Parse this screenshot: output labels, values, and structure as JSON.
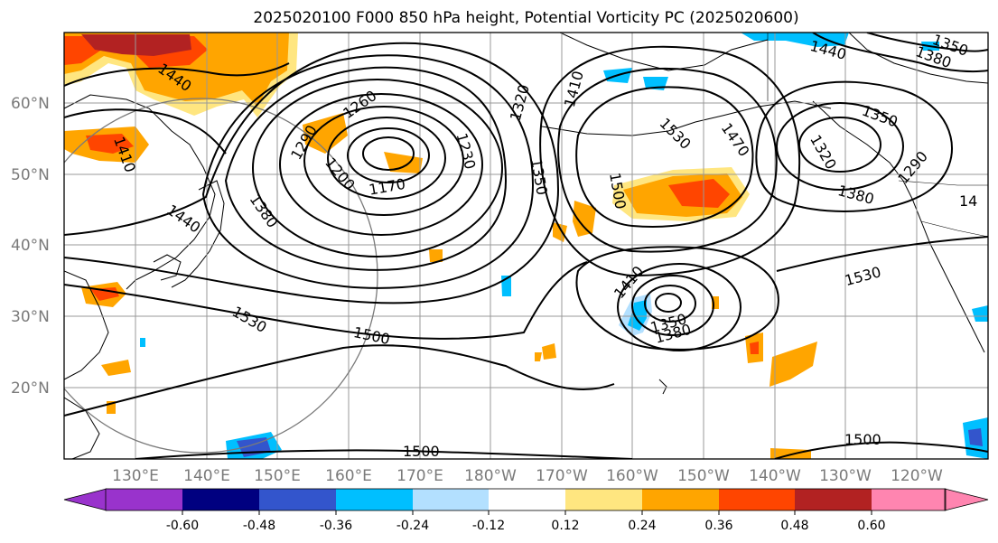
{
  "title": "2025020100 F000 850 hPa height, Potential Vorticity PC (2025020600)",
  "lat_labels": [
    "60°N",
    "50°N",
    "40°N",
    "30°N",
    "20°N"
  ],
  "lon_labels": [
    "130°E",
    "140°E",
    "150°E",
    "160°E",
    "170°E",
    "180°W",
    "170°W",
    "160°W",
    "150°W",
    "140°W",
    "130°W",
    "120°W"
  ],
  "contour_labels": [
    "1440",
    "1410",
    "1290",
    "1260",
    "1200",
    "1170",
    "1230",
    "1320",
    "1350",
    "1410",
    "1380",
    "1440",
    "1530",
    "1500",
    "1470",
    "1530",
    "1410",
    "1350",
    "1380",
    "1500",
    "1500",
    "1530",
    "1440",
    "1380",
    "1350",
    "1320",
    "1290",
    "1380",
    "1350",
    "14",
    "1500"
  ],
  "colorbar": {
    "ticks": [
      "-0.60",
      "-0.48",
      "-0.36",
      "-0.24",
      "-0.12",
      "0.12",
      "0.24",
      "0.36",
      "0.48",
      "0.60"
    ],
    "colors": [
      "#9933cc",
      "#000080",
      "#3355cc",
      "#00bfff",
      "#b3e0ff",
      "#ffffff",
      "#ffe680",
      "#ffa500",
      "#ff4500",
      "#b22222",
      "#ff85b0"
    ]
  }
}
